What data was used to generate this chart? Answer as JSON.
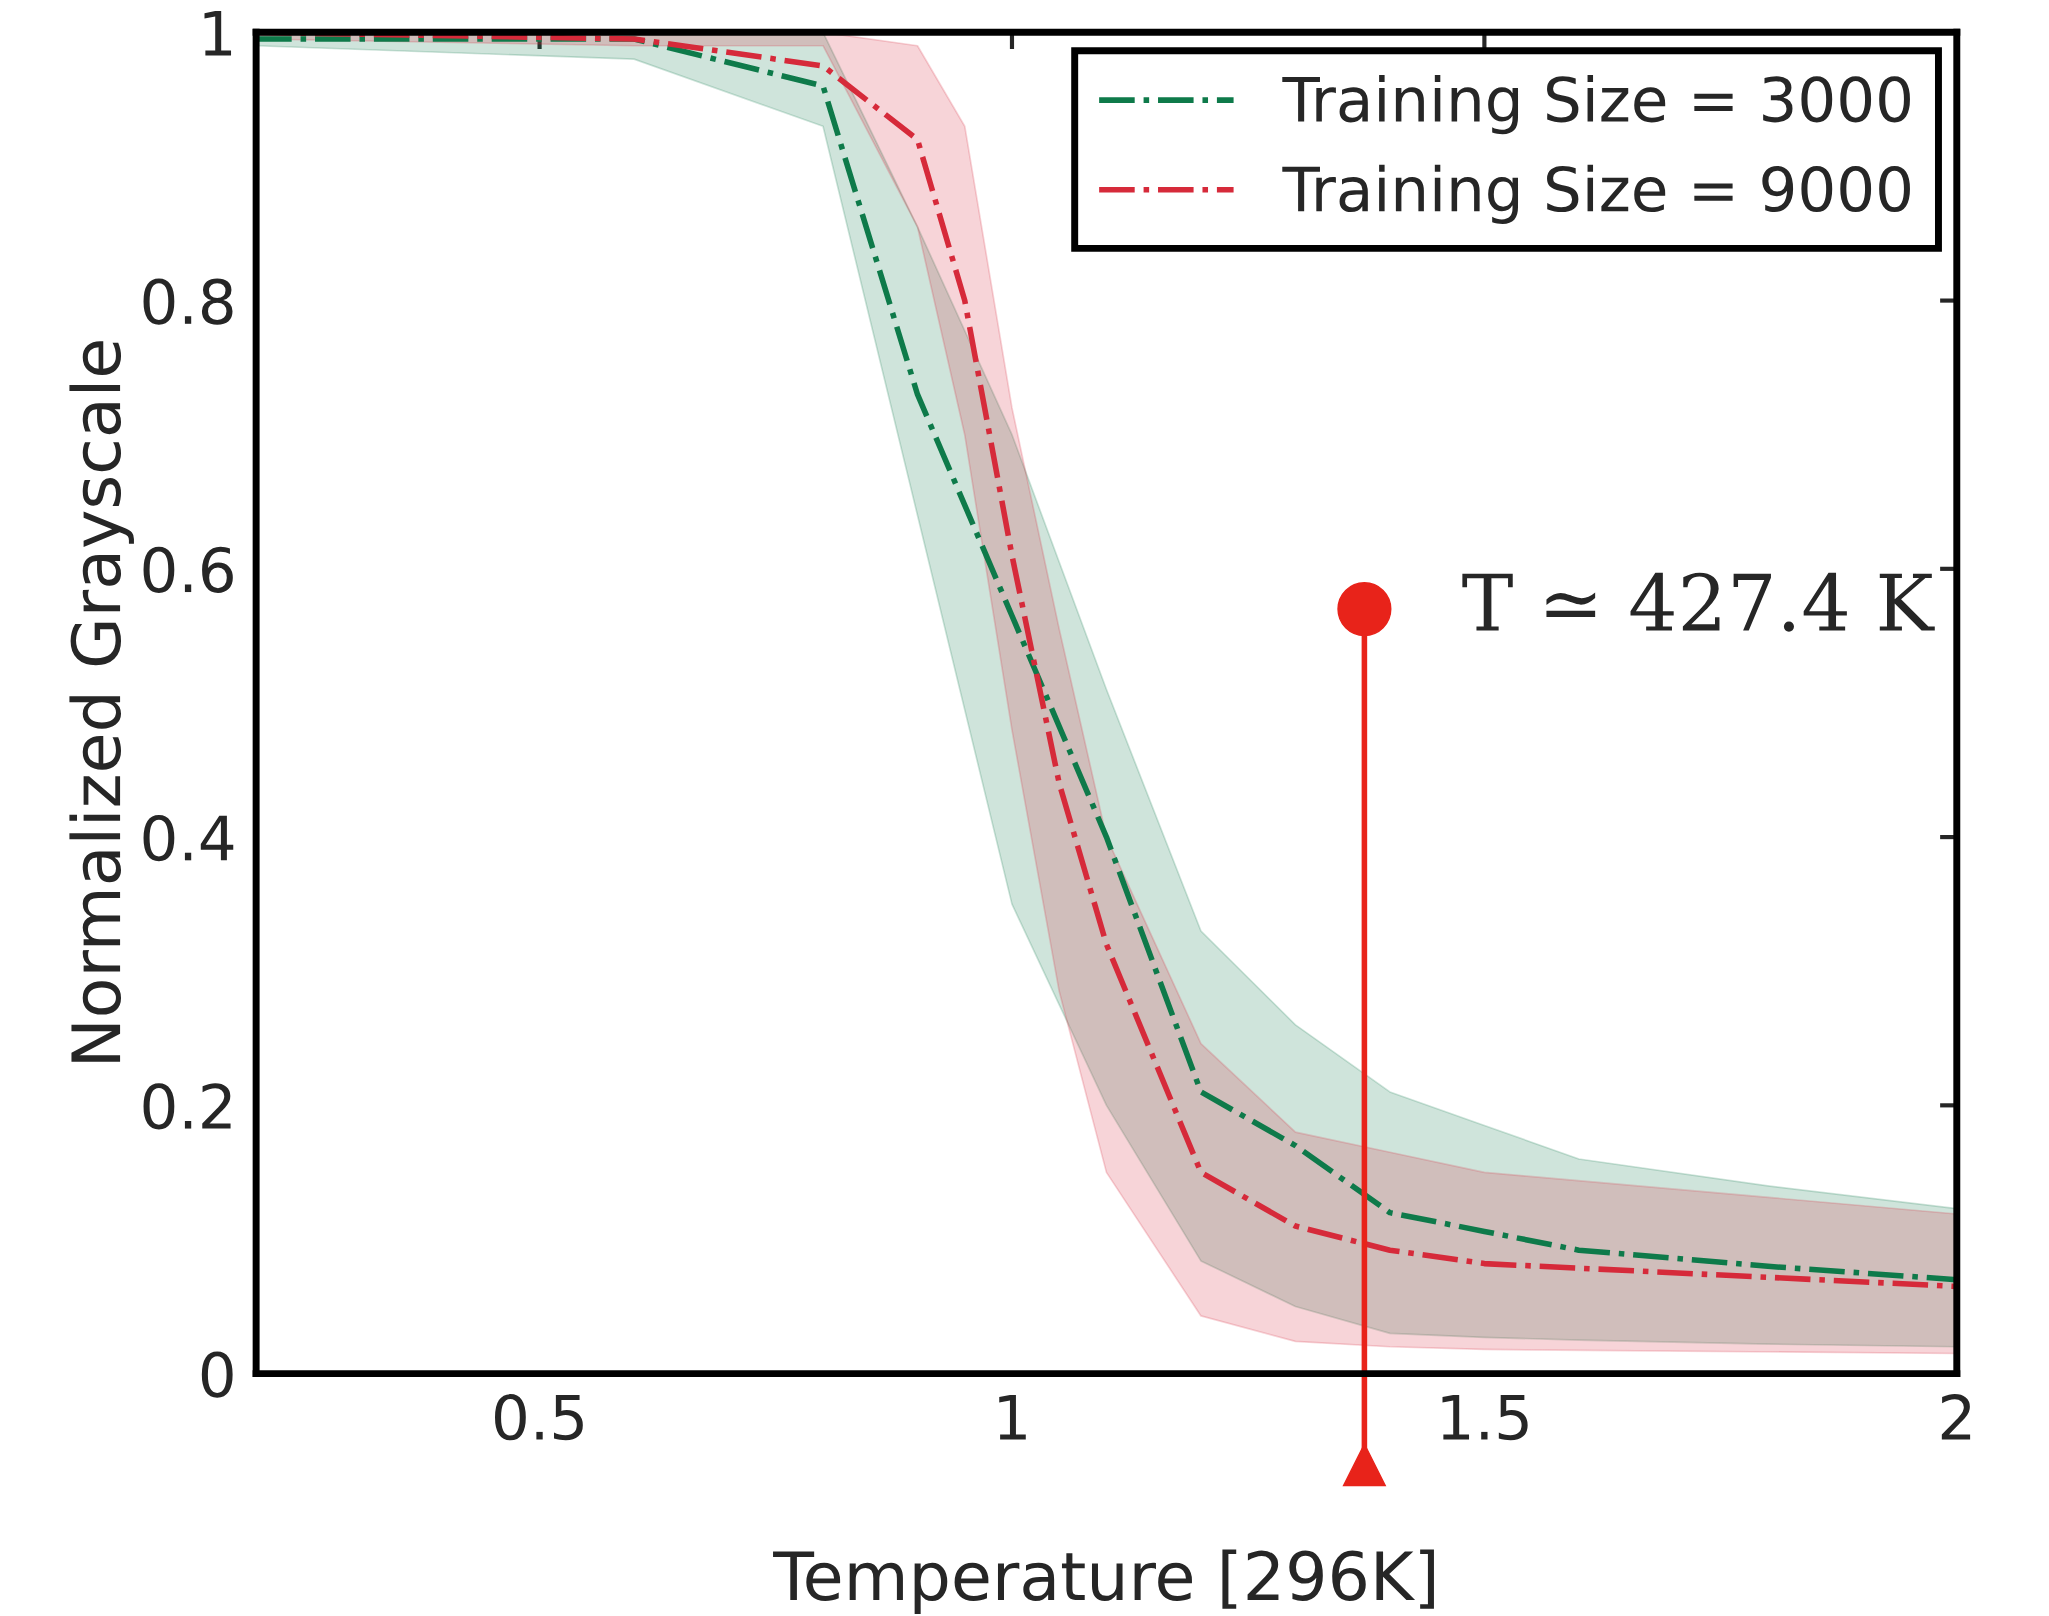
{
  "chart_data": {
    "type": "line",
    "xlabel": "Temperature [296K]",
    "ylabel": "Normalized Grayscale",
    "xlim": [
      0.2,
      2
    ],
    "ylim": [
      0,
      1
    ],
    "xticks": [
      0.5,
      1,
      1.5,
      2
    ],
    "yticks": [
      0,
      0.2,
      0.4,
      0.6,
      0.8,
      1
    ],
    "grid": false,
    "legend": "top right",
    "line_style": "dashdot",
    "marker": "none",
    "series": [
      {
        "name": "Training Size = 3000",
        "color": "#0e7a4a",
        "x": [
          0.2,
          0.6,
          0.8,
          0.9,
          1.0,
          1.1,
          1.2,
          1.3,
          1.4,
          1.5,
          1.6,
          1.8,
          2.0
        ],
        "values": [
          0.995,
          0.995,
          0.96,
          0.73,
          0.565,
          0.4,
          0.21,
          0.17,
          0.12,
          0.106,
          0.092,
          0.08,
          0.07
        ],
        "lower": [
          0.99,
          0.98,
          0.93,
          0.64,
          0.35,
          0.2,
          0.084,
          0.05,
          0.03,
          0.027,
          0.025,
          0.022,
          0.02
        ],
        "upper": [
          1.0,
          1.0,
          1.0,
          0.855,
          0.7,
          0.51,
          0.33,
          0.26,
          0.21,
          0.185,
          0.16,
          0.14,
          0.123
        ]
      },
      {
        "name": "Training Size = 9000",
        "color": "#d62a3a",
        "x": [
          0.2,
          0.6,
          0.8,
          0.9,
          0.95,
          1.0,
          1.05,
          1.1,
          1.2,
          1.3,
          1.4,
          1.5,
          2.0
        ],
        "values": [
          1.0,
          0.995,
          0.975,
          0.92,
          0.8,
          0.61,
          0.44,
          0.32,
          0.15,
          0.11,
          0.092,
          0.082,
          0.065
        ],
        "lower": [
          0.995,
          0.99,
          0.99,
          0.855,
          0.7,
          0.48,
          0.285,
          0.15,
          0.043,
          0.024,
          0.02,
          0.018,
          0.015
        ],
        "upper": [
          1.0,
          1.0,
          1.0,
          0.99,
          0.93,
          0.72,
          0.555,
          0.4,
          0.246,
          0.18,
          0.165,
          0.15,
          0.119
        ]
      }
    ],
    "ref_lines": [
      {
        "axis": "x",
        "value": 1.373,
        "label": "T ≃ 427.4 K",
        "color": "#e8231a"
      }
    ]
  }
}
